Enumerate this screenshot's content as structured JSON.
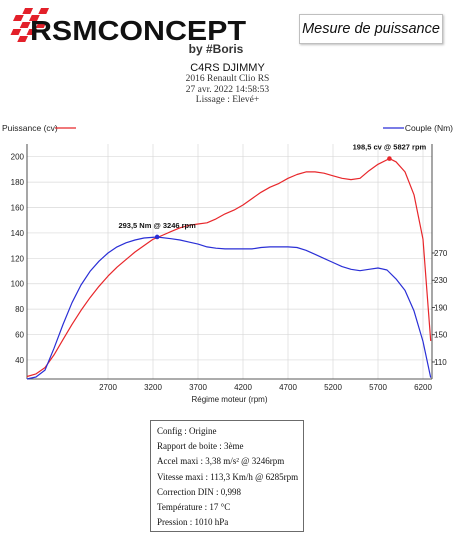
{
  "brand": {
    "name": "RSMCONCEPT",
    "byline": "by #Boris"
  },
  "badge": "Mesure de puissance",
  "header": {
    "title": "C4RS DJIMMY",
    "line1": "2016 Renault Clio RS",
    "line2": "27 avr. 2022 14:58:53",
    "line3": "Lissage : Elevé+"
  },
  "colors": {
    "power": "#e8272b",
    "torque": "#2a2fd6",
    "brand_red": "#e3202a"
  },
  "chart_data": {
    "type": "line",
    "xlabel": "Régime moteur (rpm)",
    "xlim": [
      1800,
      6300
    ],
    "x_ticks": [
      2700,
      3200,
      3700,
      4200,
      4700,
      5200,
      5700,
      6200
    ],
    "y_left_label": "Puissance (cv)",
    "y_left_lim": [
      25,
      210
    ],
    "y_left_ticks": [
      40,
      60,
      80,
      100,
      120,
      140,
      160,
      180,
      200
    ],
    "y_right_label": "Couple (Nm)",
    "y_right_lim": [
      85,
      430
    ],
    "y_right_ticks": [
      110,
      150,
      190,
      230,
      270
    ],
    "grid": true,
    "legend": "top",
    "series": [
      {
        "name": "Puissance (cv)",
        "axis": "left",
        "color": "#e8272b",
        "x": [
          1800,
          1900,
          2000,
          2100,
          2200,
          2300,
          2400,
          2500,
          2600,
          2700,
          2800,
          2900,
          3000,
          3100,
          3200,
          3300,
          3400,
          3500,
          3600,
          3700,
          3800,
          3900,
          4000,
          4100,
          4200,
          4300,
          4400,
          4500,
          4600,
          4700,
          4800,
          4900,
          5000,
          5100,
          5200,
          5300,
          5400,
          5500,
          5600,
          5700,
          5827,
          5900,
          6000,
          6100,
          6200,
          6285
        ],
        "y": [
          27,
          29,
          34,
          44,
          56,
          68,
          79,
          89,
          98,
          106,
          113,
          119,
          125,
          130,
          135,
          138,
          141,
          144,
          146,
          147,
          148,
          151,
          155,
          158,
          162,
          167,
          172,
          176,
          179,
          183,
          186,
          188,
          188,
          187,
          185,
          183,
          182,
          183,
          189,
          194,
          198.5,
          196,
          188,
          170,
          135,
          55
        ]
      },
      {
        "name": "Couple (Nm)",
        "axis": "right",
        "color": "#2a2fd6",
        "x": [
          1800,
          1900,
          2000,
          2100,
          2200,
          2300,
          2400,
          2500,
          2600,
          2700,
          2800,
          2900,
          3000,
          3100,
          3246,
          3400,
          3500,
          3600,
          3700,
          3800,
          3900,
          4000,
          4100,
          4200,
          4300,
          4400,
          4500,
          4600,
          4700,
          4800,
          4900,
          5000,
          5100,
          5200,
          5300,
          5400,
          5500,
          5600,
          5700,
          5800,
          5900,
          6000,
          6100,
          6200,
          6285
        ],
        "y": [
          85,
          88,
          98,
          130,
          165,
          197,
          223,
          243,
          258,
          270,
          279,
          285,
          289,
          292,
          293.5,
          291,
          289,
          286,
          283,
          279,
          277,
          276,
          276,
          276,
          276,
          278,
          279,
          279,
          279,
          278,
          274,
          268,
          262,
          256,
          250,
          246,
          244,
          246,
          248,
          245,
          232,
          215,
          185,
          140,
          87
        ]
      }
    ],
    "annotations": [
      {
        "text": "198,5 cv @ 5827 rpm",
        "x": 5827,
        "y": 198.5,
        "axis": "left",
        "color": "#e8272b"
      },
      {
        "text": "293,5 Nm @ 3246 rpm",
        "x": 3246,
        "y": 293.5,
        "axis": "right",
        "color": "#2a2fd6"
      }
    ]
  },
  "info": {
    "lines": [
      "Config : Origine",
      "Rapport de boite : 3ème",
      "Accel maxi : 3,38 m/s² @ 3246rpm",
      "Vitesse maxi : 113,3 Km/h @ 6285rpm",
      "Correction DIN : 0,998",
      "Température : 17 °C",
      "Pression : 1010 hPa"
    ]
  }
}
